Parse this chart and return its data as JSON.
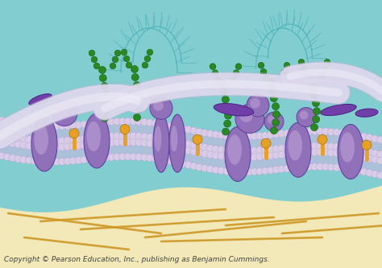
{
  "bg_teal": "#82cdd0",
  "bg_cream": "#f2e8b8",
  "membrane_color": "#c8b8e0",
  "head_color": "#d8cce8",
  "head_edge": "#b0a0cc",
  "tail_color": "#eeeeee",
  "protein_main": "#9070b8",
  "protein_light": "#c0a8dc",
  "protein_dark": "#6040a0",
  "chol_color": "#e8a020",
  "glyco_color": "#2a8820",
  "glyco_dark": "#1a6010",
  "fiber_color": "#ddd8ec",
  "fiber_inner": "#f0eef8",
  "cyto_color": "#d4a030",
  "purple_elong": "#7040a8",
  "teal_glyco": "#4ab0b8",
  "caption": "Copyright © Pearson Education, Inc., publishing as Benjamin Cummings.",
  "caption_fontsize": 6.5,
  "caption_color": "#444444"
}
